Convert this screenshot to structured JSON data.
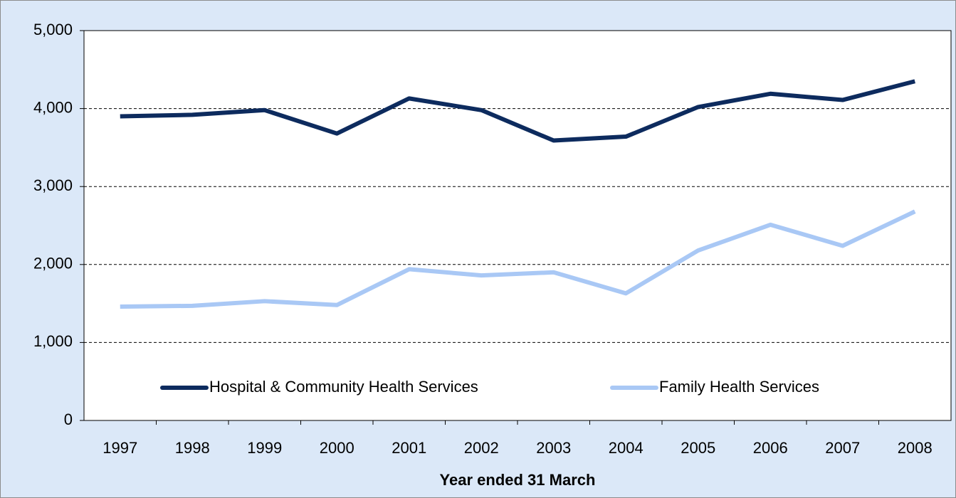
{
  "chart_data": {
    "type": "line",
    "x_label": "Year ended 31 March",
    "categories": [
      "1997",
      "1998",
      "1999",
      "2000",
      "2001",
      "2002",
      "2003",
      "2004",
      "2005",
      "2006",
      "2007",
      "2008"
    ],
    "series": [
      {
        "name": "Hospital & Community Health Services",
        "color": "#0d2b5e",
        "values": [
          3900,
          3920,
          3980,
          3680,
          4130,
          3980,
          3590,
          3640,
          4020,
          4190,
          4110,
          4350
        ]
      },
      {
        "name": "Family Health Services",
        "color": "#a9c8f5",
        "values": [
          1460,
          1470,
          1530,
          1480,
          1940,
          1860,
          1900,
          1630,
          2180,
          2510,
          2240,
          2680
        ]
      }
    ],
    "ylim": [
      0,
      5000
    ],
    "yticks": [
      0,
      {
        "value": 1000,
        "label": "1,000"
      },
      {
        "value": 2000,
        "label": "2,000"
      },
      {
        "value": 3000,
        "label": "3,000"
      },
      {
        "value": 4000,
        "label": "4,000"
      },
      {
        "value": 5000,
        "label": "5,000"
      }
    ],
    "grid": true,
    "legend": "bottom"
  }
}
